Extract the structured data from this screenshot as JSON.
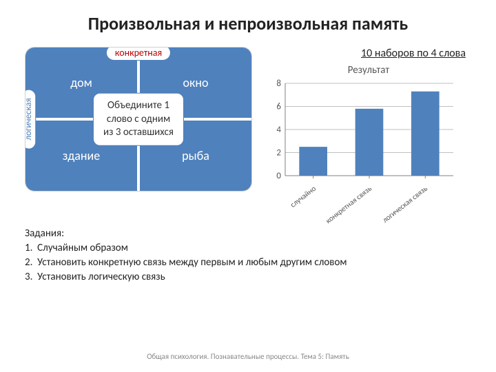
{
  "title": "Произвольная и непроизвольная память",
  "subtitle": "10 наборов по 4 слова",
  "quad": {
    "tl": "дом",
    "tr": "окно",
    "bl": "здание",
    "br": "рыба",
    "top_label": "конкретная",
    "left_label": "логическая",
    "center_line1": "Объедините 1",
    "center_line2": "слово с одним",
    "center_line3": "из 3 оставшихся",
    "cell_color": "#4f81bd",
    "oval_border": "#4f81bd",
    "top_label_color": "#c00000",
    "left_label_color": "#4f81bd"
  },
  "chart": {
    "type": "bar",
    "title": "Результат",
    "categories": [
      "случайно",
      "конкретная связь",
      "логическая связь"
    ],
    "values": [
      2.5,
      5.8,
      7.3
    ],
    "bar_color": "#4f81bd",
    "ylim": [
      0,
      8
    ],
    "ytick_step": 2,
    "background_color": "#ffffff",
    "grid_color": "#bfbfbf",
    "axis_color": "#808080",
    "tick_fontsize": 13,
    "label_fontsize": 11,
    "bar_width": 0.5
  },
  "tasks": {
    "heading": "Задания:",
    "items": [
      "Случайным образом",
      "Установить конкретную связь между первым и любым другим словом",
      "Установить логическую связь"
    ]
  },
  "footer": "Общая психология. Познавательные процессы. Тема 5: Память"
}
